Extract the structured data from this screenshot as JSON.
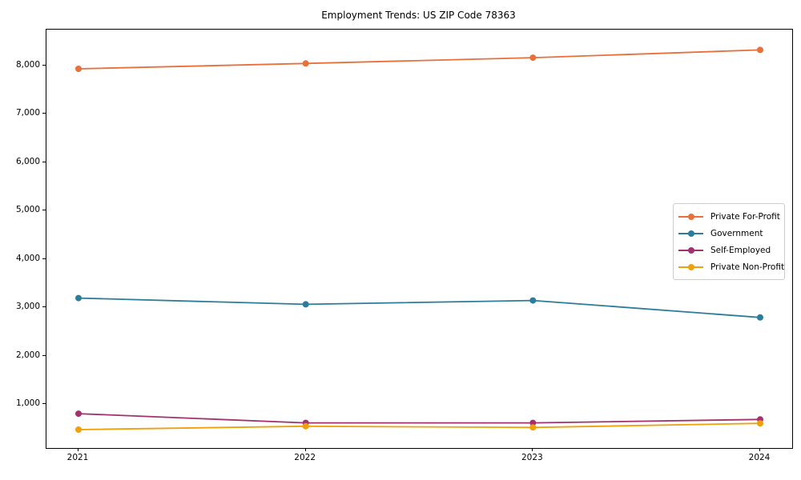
{
  "title": "Employment Trends: US ZIP Code 78363",
  "chart_data": {
    "type": "line",
    "title": "Employment Trends: US ZIP Code 78363",
    "xlabel": "",
    "ylabel": "",
    "x": [
      2021,
      2022,
      2023,
      2024
    ],
    "xtick_labels": [
      "2021",
      "2022",
      "2023",
      "2024"
    ],
    "series": [
      {
        "name": "Private For-Profit",
        "color": "#E8703A",
        "values": [
          7940,
          8050,
          8170,
          8330
        ]
      },
      {
        "name": "Government",
        "color": "#2B7D9B",
        "values": [
          3200,
          3070,
          3150,
          2800
        ]
      },
      {
        "name": "Self-Employed",
        "color": "#A2316E",
        "values": [
          810,
          620,
          620,
          690
        ]
      },
      {
        "name": "Private Non-Profit",
        "color": "#EFA00B",
        "values": [
          480,
          550,
          525,
          610
        ]
      }
    ],
    "ylim": [
      100,
      8750
    ],
    "yticks": [
      1000,
      2000,
      3000,
      4000,
      5000,
      6000,
      7000,
      8000
    ],
    "ytick_labels": [
      "1,000",
      "2,000",
      "3,000",
      "4,000",
      "5,000",
      "6,000",
      "7,000",
      "8,000"
    ],
    "grid": false,
    "legend_position": "center-right",
    "marker": "circle",
    "line_width": 1.8,
    "marker_radius": 4
  }
}
